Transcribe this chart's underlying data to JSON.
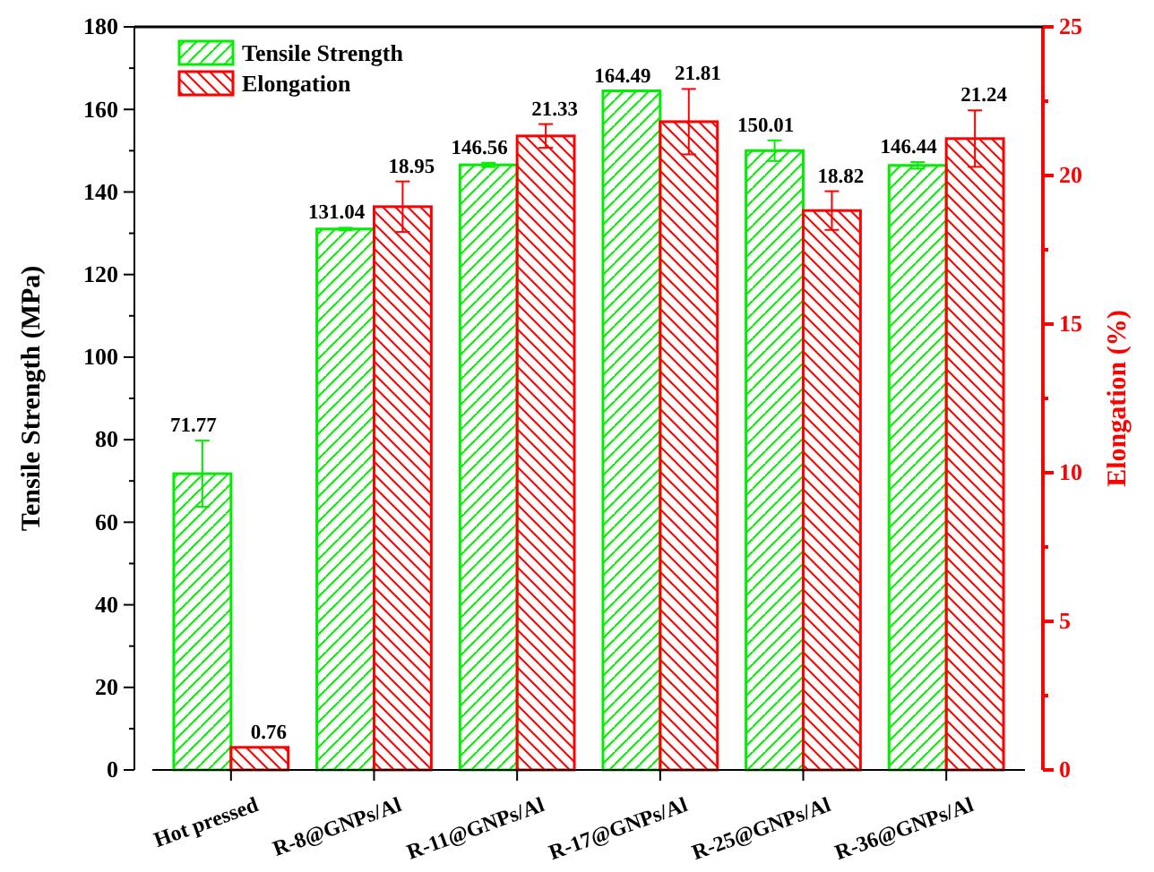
{
  "chart_data": {
    "type": "bar",
    "categories": [
      "Hot pressed",
      "R-8@GNPs/Al",
      "R-11@GNPs/Al",
      "R-17@GNPs/Al",
      "R-25@GNPs/Al",
      "R-36@GNPs/Al"
    ],
    "ylabel": "Tensile Strength (MPa)",
    "y2label": "Elongation (%)",
    "ylim": [
      0,
      180
    ],
    "yticks": [
      0,
      20,
      40,
      60,
      80,
      100,
      120,
      140,
      160,
      180
    ],
    "y2lim": [
      0,
      25
    ],
    "y2ticks": [
      0,
      5,
      10,
      15,
      20,
      25
    ],
    "legend": "top left",
    "data_labels": true,
    "series": [
      {
        "name": "Tensile Strength",
        "color": "#00ee00",
        "values": [
          71.77,
          131.04,
          146.56,
          164.49,
          150.01,
          146.44
        ],
        "errors": [
          8,
          0.3,
          0.5,
          null,
          2.5,
          0.8
        ]
      },
      {
        "name": "Elongation",
        "color": "#ff0000",
        "axis": "y2",
        "values": [
          0.76,
          18.95,
          21.33,
          21.81,
          18.82,
          21.24
        ],
        "errors": [
          null,
          0.85,
          0.4,
          1.1,
          0.65,
          0.95
        ]
      }
    ]
  }
}
